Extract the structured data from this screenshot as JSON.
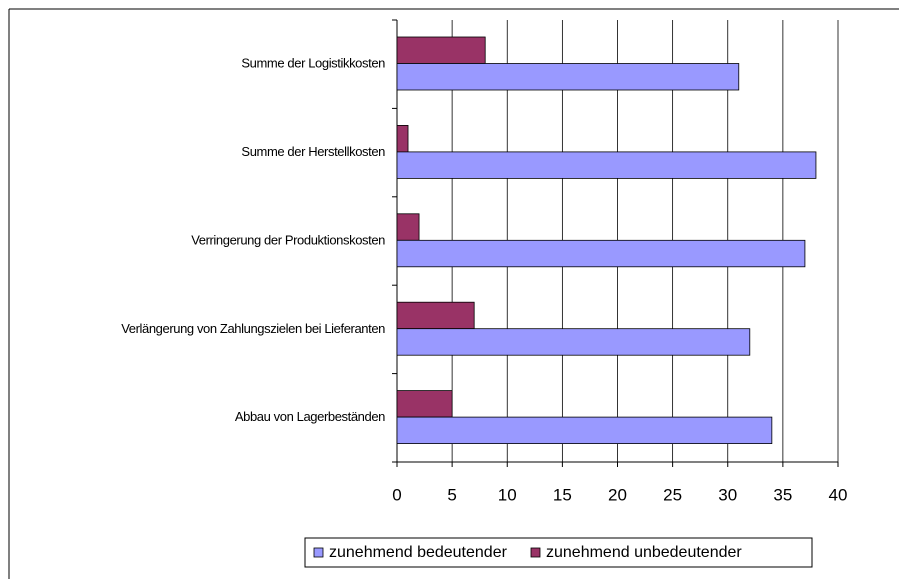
{
  "chart_data": {
    "type": "hbar",
    "categories": [
      "Summe der Logistikkosten",
      "Summe der Herstellkosten",
      "Verringerung der Produktionskosten",
      "Verlängerung von Zahlungszielen bei Lieferanten",
      "Abbau von Lagerbeständen"
    ],
    "series": [
      {
        "name": "zunehmend bedeutender",
        "color": "#9999ff",
        "values": [
          31,
          38,
          37,
          32,
          34
        ]
      },
      {
        "name": "zunehmend unbedeutender",
        "color": "#993366",
        "values": [
          8,
          1,
          2,
          7,
          5
        ]
      }
    ],
    "xlim": [
      0,
      40
    ],
    "xticks": [
      0,
      5,
      10,
      15,
      20,
      25,
      30,
      35,
      40
    ],
    "grid": true,
    "legend": "bottom"
  }
}
